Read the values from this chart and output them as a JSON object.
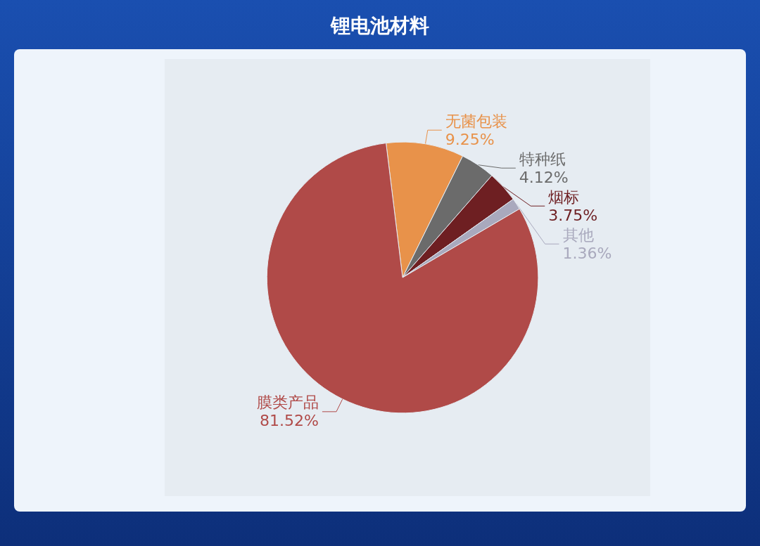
{
  "chart_data": {
    "type": "pie",
    "title": "锂电池材料",
    "categories": [
      "无菌包装",
      "特种纸",
      "烟标",
      "其他",
      "膜类产品"
    ],
    "values": [
      9.25,
      4.12,
      3.75,
      1.36,
      81.52
    ],
    "value_labels": [
      "9.25%",
      "4.12%",
      "3.75%",
      "1.36%",
      "81.52%"
    ],
    "colors": [
      "#e8924a",
      "#6b6b6b",
      "#6e1f22",
      "#a9a9bd",
      "#b04a48"
    ],
    "legend": false
  }
}
